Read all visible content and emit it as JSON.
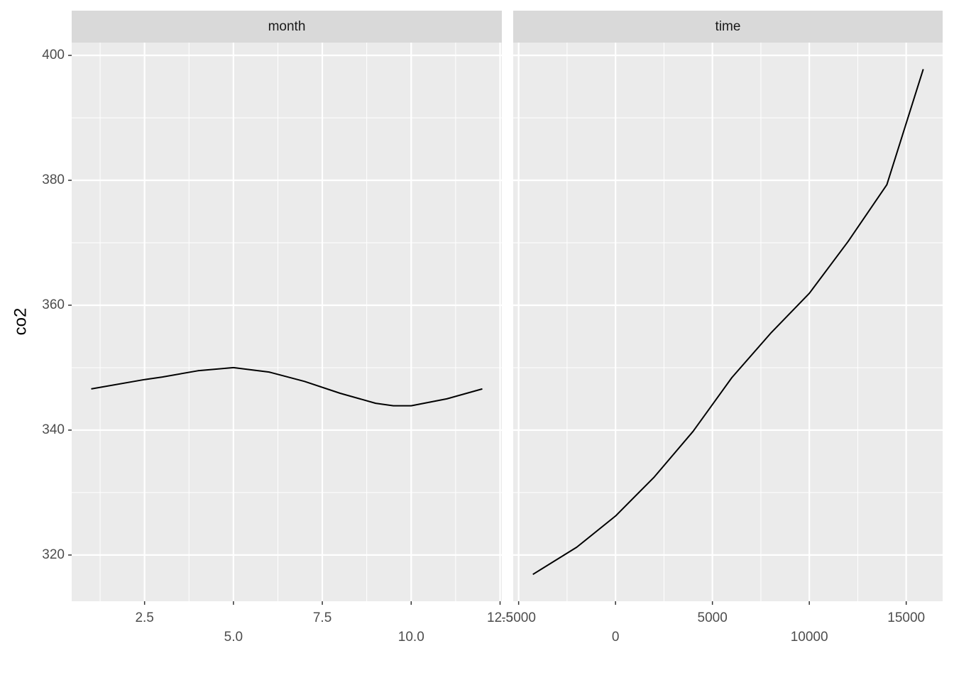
{
  "chart_data": [
    {
      "type": "line",
      "title": "month",
      "ylabel": "co2",
      "x": [
        1,
        2.5,
        3,
        4,
        5,
        6,
        7,
        8,
        9,
        9.5,
        10,
        11,
        12
      ],
      "values": [
        346.6,
        348.1,
        348.5,
        349.5,
        350.0,
        349.3,
        347.8,
        345.9,
        344.3,
        343.9,
        343.9,
        345.0,
        346.6
      ],
      "color": "#000000",
      "xlim": [
        0.45,
        12.55
      ],
      "xticks": [
        {
          "value": 2.5,
          "label": "2.5"
        },
        {
          "value": 5,
          "label": "5.0"
        },
        {
          "value": 7.5,
          "label": "7.5"
        },
        {
          "value": 10,
          "label": "10.0"
        },
        {
          "value": 12.5,
          "label": "12.5"
        }
      ],
      "ylim": [
        312.6,
        402.05
      ],
      "yticks": [
        320,
        340,
        360,
        380,
        400
      ],
      "grid": true
    },
    {
      "type": "line",
      "title": "time",
      "x": [
        -4267,
        -2000,
        0,
        2000,
        4000,
        6000,
        8000,
        10000,
        12000,
        14000,
        15879
      ],
      "values": [
        316.9,
        321.25,
        326.25,
        332.5,
        339.8,
        348.4,
        355.5,
        361.9,
        370.2,
        379.3,
        397.8
      ],
      "color": "#000000",
      "xlim": [
        -5280,
        16880
      ],
      "xticks": [
        -5000,
        0,
        5000,
        10000,
        15000
      ],
      "ylim": [
        312.6,
        402.05
      ],
      "yticks": [
        320,
        340,
        360,
        380,
        400
      ],
      "grid": true
    }
  ]
}
